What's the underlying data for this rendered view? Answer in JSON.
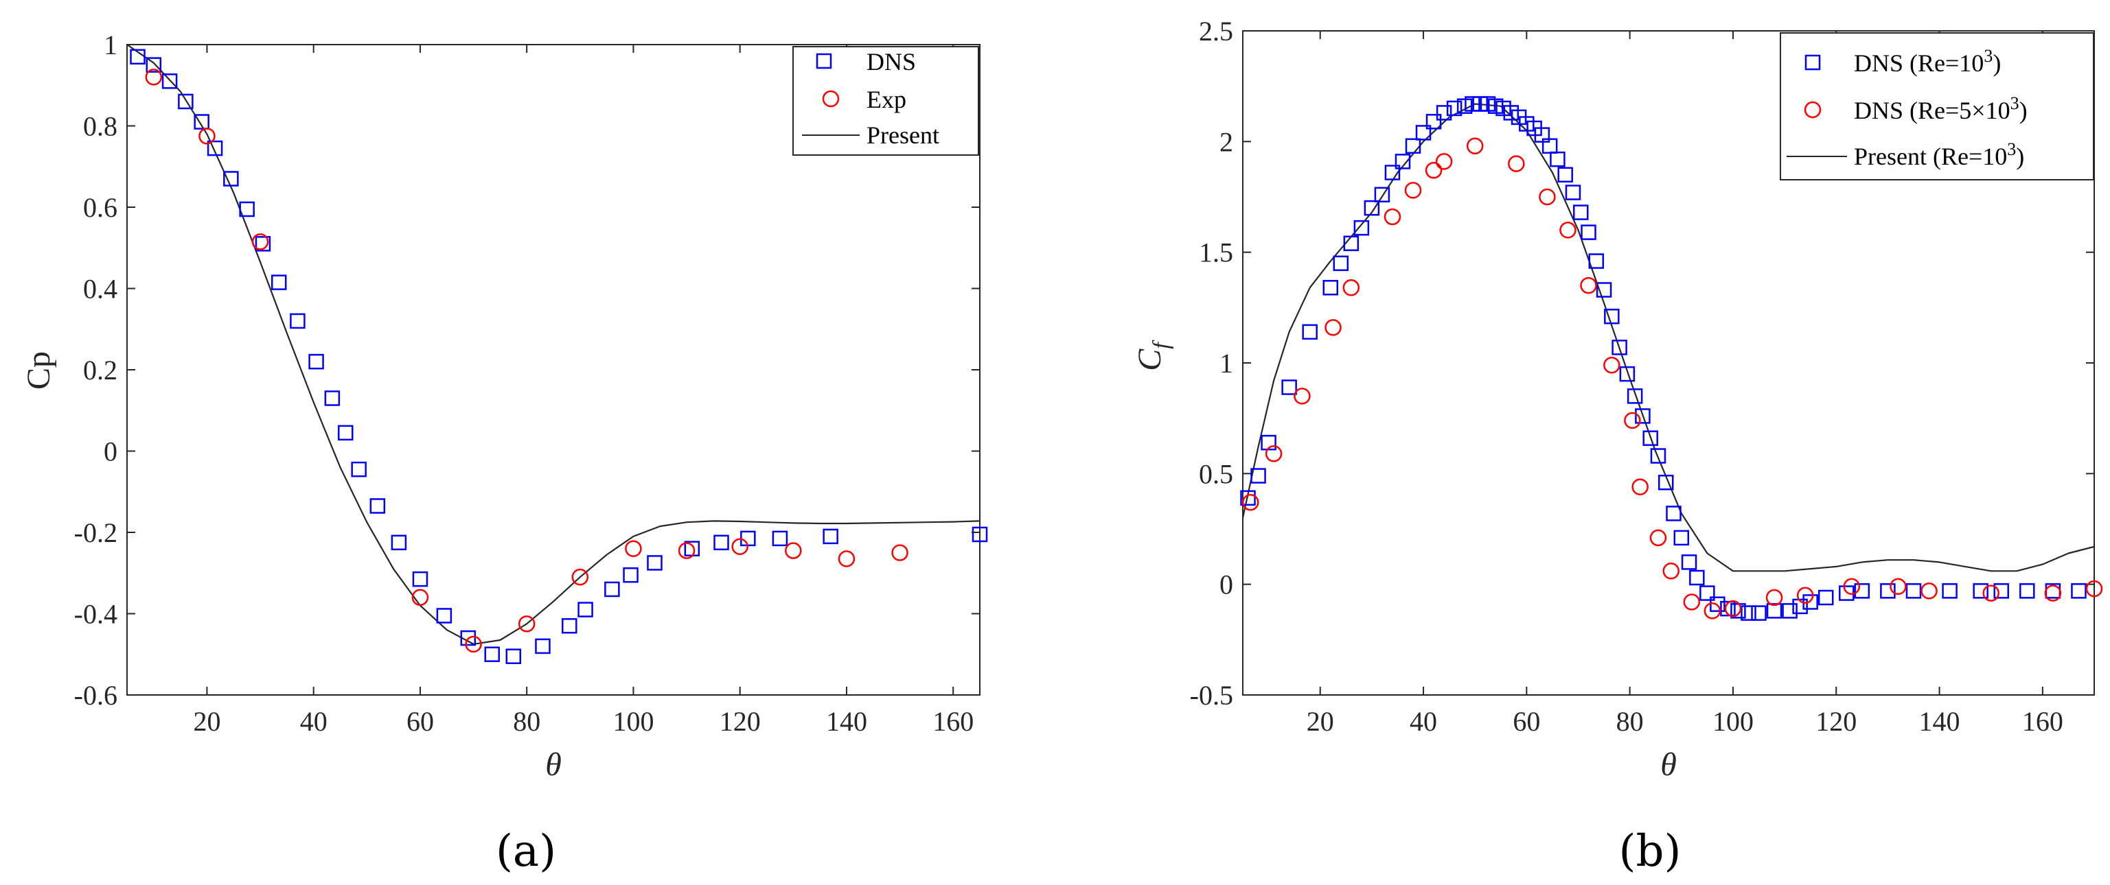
{
  "chart_data": [
    {
      "type": "scatter",
      "panel_label": "(a)",
      "xlabel": "θ",
      "ylabel": "Cp",
      "xlim": [
        5,
        165
      ],
      "ylim": [
        -0.6,
        1.0
      ],
      "xticks": [
        20,
        40,
        60,
        80,
        100,
        120,
        140,
        160
      ],
      "yticks": [
        -0.6,
        -0.4,
        -0.2,
        0,
        0.2,
        0.4,
        0.6,
        0.8,
        1
      ],
      "ytick_labels": [
        "-0.6",
        "-0.4",
        "-0.2",
        "0",
        "0.2",
        "0.4",
        "0.6",
        "0.8",
        "1"
      ],
      "legend_position": "top-right",
      "series": [
        {
          "name": "DNS",
          "marker": "square",
          "color": "#0000ff",
          "x": [
            7,
            10,
            13,
            16,
            19,
            21.5,
            24.5,
            27.5,
            30.5,
            33.5,
            37,
            40.5,
            43.5,
            46,
            48.5,
            52,
            56,
            60,
            64.5,
            69,
            73.5,
            77.5,
            83,
            88,
            91,
            96,
            99.5,
            104,
            111,
            116.5,
            121.5,
            127.5,
            137,
            165
          ],
          "y": [
            0.97,
            0.95,
            0.91,
            0.86,
            0.81,
            0.745,
            0.67,
            0.595,
            0.51,
            0.415,
            0.32,
            0.22,
            0.13,
            0.045,
            -0.045,
            -0.135,
            -0.225,
            -0.315,
            -0.405,
            -0.46,
            -0.5,
            -0.505,
            -0.48,
            -0.43,
            -0.39,
            -0.34,
            -0.305,
            -0.275,
            -0.24,
            -0.225,
            -0.215,
            -0.215,
            -0.21,
            -0.205
          ]
        },
        {
          "name": "Exp",
          "marker": "circle",
          "color": "#ff0000",
          "x": [
            10,
            20,
            30,
            60,
            70,
            80,
            90,
            100,
            110,
            120,
            130,
            140,
            150
          ],
          "y": [
            0.92,
            0.775,
            0.515,
            -0.36,
            -0.475,
            -0.425,
            -0.31,
            -0.24,
            -0.245,
            -0.235,
            -0.245,
            -0.265,
            -0.25
          ]
        },
        {
          "name": "Present",
          "marker": "line",
          "color": "#262626",
          "x": [
            5,
            10,
            15,
            20,
            25,
            30,
            35,
            40,
            45,
            50,
            55,
            60,
            65,
            70,
            75,
            80,
            85,
            90,
            95,
            100,
            105,
            110,
            115,
            120,
            125,
            130,
            135,
            140,
            145,
            150,
            155,
            160,
            165
          ],
          "y": [
            1.0,
            0.955,
            0.885,
            0.78,
            0.635,
            0.465,
            0.29,
            0.12,
            -0.04,
            -0.175,
            -0.29,
            -0.38,
            -0.44,
            -0.475,
            -0.465,
            -0.425,
            -0.37,
            -0.31,
            -0.255,
            -0.21,
            -0.185,
            -0.175,
            -0.172,
            -0.173,
            -0.175,
            -0.177,
            -0.178,
            -0.178,
            -0.177,
            -0.176,
            -0.175,
            -0.174,
            -0.172
          ]
        }
      ]
    },
    {
      "type": "scatter",
      "panel_label": "(b)",
      "xlabel": "θ",
      "ylabel": "C",
      "ylabel_subscript": "f",
      "xlim": [
        5,
        170
      ],
      "ylim": [
        -0.5,
        2.5
      ],
      "xticks": [
        20,
        40,
        60,
        80,
        100,
        120,
        140,
        160
      ],
      "yticks": [
        -0.5,
        0,
        0.5,
        1,
        1.5,
        2,
        2.5
      ],
      "ytick_labels": [
        "-0.5",
        "0",
        "0.5",
        "1",
        "1.5",
        "2",
        "2.5"
      ],
      "legend_position": "top-right",
      "series": [
        {
          "name": "DNS (Re=10",
          "name_superscript": "3",
          "name_suffix": ")",
          "marker": "square",
          "color": "#0000ff",
          "x": [
            6,
            8,
            10,
            14,
            18,
            22,
            24,
            26,
            28,
            30,
            32,
            34,
            36,
            38,
            40,
            42,
            44,
            46,
            48,
            49.5,
            51,
            52.5,
            54,
            55.5,
            57,
            58.5,
            60,
            61.5,
            63,
            64.5,
            66,
            67.5,
            69,
            70.5,
            72,
            73.5,
            75,
            76.5,
            78,
            79.5,
            81,
            82.5,
            84,
            85.5,
            87,
            88.5,
            90,
            91.5,
            93,
            95,
            97,
            99,
            101,
            103,
            105,
            108,
            111,
            113,
            115,
            118,
            122,
            125,
            130,
            135,
            142,
            148,
            152,
            157,
            162,
            167
          ],
          "y": [
            0.39,
            0.49,
            0.64,
            0.89,
            1.14,
            1.34,
            1.45,
            1.54,
            1.61,
            1.7,
            1.76,
            1.86,
            1.91,
            1.98,
            2.04,
            2.09,
            2.13,
            2.15,
            2.16,
            2.17,
            2.17,
            2.17,
            2.16,
            2.15,
            2.13,
            2.11,
            2.08,
            2.06,
            2.03,
            1.98,
            1.92,
            1.85,
            1.77,
            1.68,
            1.59,
            1.46,
            1.33,
            1.21,
            1.07,
            0.95,
            0.85,
            0.76,
            0.66,
            0.58,
            0.46,
            0.32,
            0.21,
            0.1,
            0.03,
            -0.04,
            -0.09,
            -0.11,
            -0.12,
            -0.13,
            -0.13,
            -0.12,
            -0.12,
            -0.1,
            -0.08,
            -0.06,
            -0.04,
            -0.03,
            -0.03,
            -0.03,
            -0.03,
            -0.03,
            -0.03,
            -0.03,
            -0.03,
            -0.03
          ]
        },
        {
          "name": "DNS (Re=5×10",
          "name_superscript": "3",
          "name_suffix": ")",
          "marker": "circle",
          "color": "#ff0000",
          "x": [
            6.5,
            11,
            16.5,
            22.5,
            26,
            34,
            38,
            42,
            44,
            50,
            58,
            64,
            68,
            72,
            76.5,
            80.5,
            82,
            85.5,
            88,
            92,
            96,
            100,
            108,
            114,
            123,
            132,
            138,
            150,
            162,
            170
          ],
          "y": [
            0.37,
            0.59,
            0.85,
            1.16,
            1.34,
            1.66,
            1.78,
            1.87,
            1.91,
            1.98,
            1.9,
            1.75,
            1.6,
            1.35,
            0.99,
            0.74,
            0.44,
            0.21,
            0.06,
            -0.08,
            -0.12,
            -0.11,
            -0.06,
            -0.05,
            -0.01,
            -0.01,
            -0.03,
            -0.04,
            -0.04,
            -0.02
          ]
        },
        {
          "name": "Present (Re=10",
          "name_superscript": "3",
          "name_suffix": ")",
          "marker": "line",
          "color": "#262626",
          "x": [
            5,
            8,
            11,
            14,
            18,
            22,
            26,
            30,
            35,
            40,
            45,
            50,
            55,
            60,
            65,
            70,
            75,
            80,
            85,
            90,
            95,
            100,
            105,
            110,
            115,
            120,
            125,
            130,
            135,
            140,
            145,
            150,
            155,
            160,
            165,
            170
          ],
          "y": [
            0.3,
            0.62,
            0.92,
            1.14,
            1.34,
            1.46,
            1.57,
            1.68,
            1.86,
            2.0,
            2.11,
            2.17,
            2.16,
            2.05,
            1.86,
            1.6,
            1.27,
            0.93,
            0.6,
            0.32,
            0.14,
            0.06,
            0.06,
            0.06,
            0.07,
            0.08,
            0.1,
            0.11,
            0.11,
            0.1,
            0.08,
            0.06,
            0.06,
            0.09,
            0.14,
            0.17
          ]
        }
      ]
    }
  ]
}
